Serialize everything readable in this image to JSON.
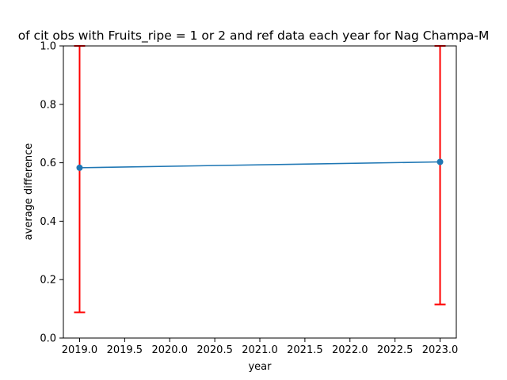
{
  "chart_data": {
    "type": "line",
    "title": "of cit obs with Fruits_ripe = 1 or 2 and ref data each year for Nag Champa-M",
    "xlabel": "year",
    "ylabel": "average difference",
    "xlim": [
      2018.82,
      2023.18
    ],
    "ylim": [
      0.0,
      1.0
    ],
    "x_ticks": [
      "2019.0",
      "2019.5",
      "2020.0",
      "2020.5",
      "2021.0",
      "2021.5",
      "2022.0",
      "2022.5",
      "2023.0"
    ],
    "y_ticks": [
      "0.0",
      "0.2",
      "0.4",
      "0.6",
      "0.8",
      "1.0"
    ],
    "grid": false,
    "series": [
      {
        "x": [
          2019,
          2023
        ],
        "y": [
          0.583,
          0.603
        ],
        "error_low": [
          0.088,
          0.115
        ],
        "error_high": [
          1.0,
          1.0
        ]
      }
    ],
    "colors": {
      "line": "#1f77b4",
      "errorbar": "#ff0000"
    }
  }
}
